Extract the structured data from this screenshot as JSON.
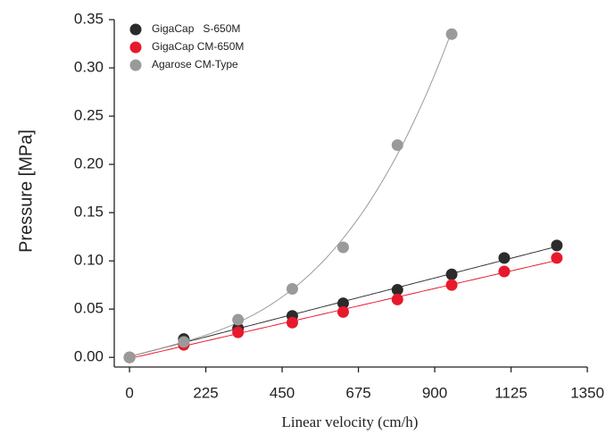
{
  "chart_data": {
    "type": "scatter",
    "x_label": "Linear velocity (cm/h)",
    "y_label": "Pressure [MPa]",
    "xlim": [
      -45,
      1350
    ],
    "ylim": [
      -0.01,
      0.35
    ],
    "xticks": [
      0,
      225,
      450,
      675,
      900,
      1125,
      1350
    ],
    "yticks": [
      {
        "value": 0,
        "label": "0.00"
      },
      {
        "value": 0.05,
        "label": "0.05"
      },
      {
        "value": 0.1,
        "label": "0.10"
      },
      {
        "value": 0.15,
        "label": "0.15"
      },
      {
        "value": 0.2,
        "label": "0.20"
      },
      {
        "value": 0.25,
        "label": "0.25"
      },
      {
        "value": 0.3,
        "label": "0.30"
      },
      {
        "value": 0.35,
        "label": "0.35"
      }
    ],
    "legend": "upper-left",
    "series": [
      {
        "name": "GigaCap   S-650M",
        "color": "#2b2b2b",
        "line_color": "#333333",
        "fit_degree": 1,
        "x": [
          0,
          160,
          320,
          480,
          630,
          790,
          950,
          1105,
          1260
        ],
        "values": [
          0,
          0.019,
          0.03,
          0.043,
          0.056,
          0.07,
          0.086,
          0.103,
          0.116
        ]
      },
      {
        "name": "GigaCap CM-650M",
        "color": "#e8192c",
        "line_color": "#e8192c",
        "fit_degree": 1,
        "x": [
          0,
          160,
          320,
          480,
          630,
          790,
          950,
          1105,
          1260
        ],
        "values": [
          0,
          0.013,
          0.026,
          0.036,
          0.047,
          0.06,
          0.075,
          0.089,
          0.103
        ]
      },
      {
        "name": "Agarose CM-Type",
        "color": "#9a9a9a",
        "line_color": "#9a9a9a",
        "fit_degree": 3,
        "x": [
          0,
          160,
          320,
          480,
          630,
          790,
          950
        ],
        "values": [
          0,
          0.016,
          0.039,
          0.071,
          0.114,
          0.22,
          0.335
        ]
      }
    ]
  }
}
